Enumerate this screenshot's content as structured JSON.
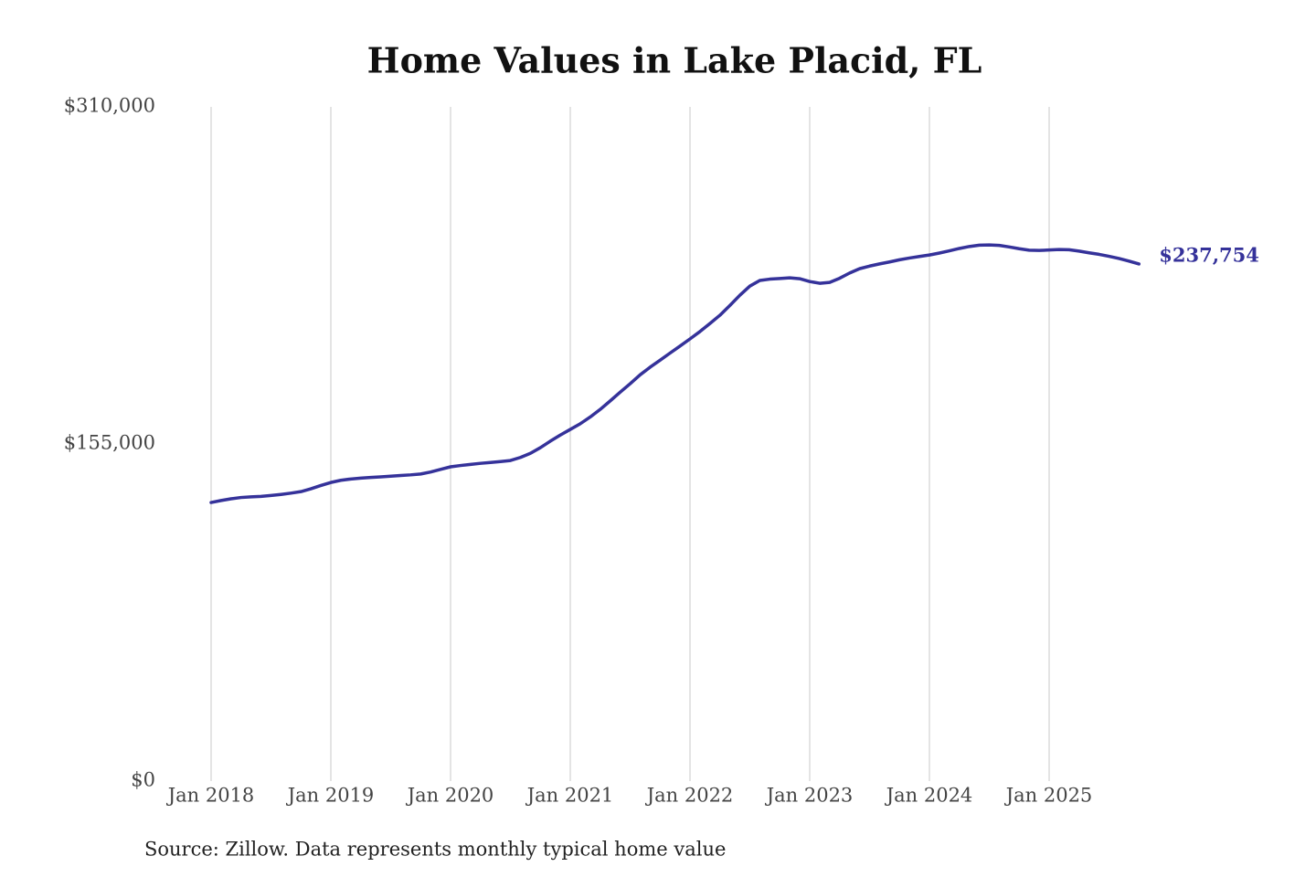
{
  "chart_data": {
    "type": "line",
    "title": "Home Values in Lake Placid, FL",
    "source": "Source: Zillow. Data represents monthly typical home value",
    "categories": [
      "Jan 2018",
      null,
      null,
      null,
      null,
      null,
      null,
      null,
      null,
      null,
      null,
      null,
      "Jan 2019",
      null,
      null,
      null,
      null,
      null,
      null,
      null,
      null,
      null,
      null,
      null,
      "Jan 2020",
      null,
      null,
      null,
      null,
      null,
      null,
      null,
      null,
      null,
      null,
      null,
      "Jan 2021",
      null,
      null,
      null,
      null,
      null,
      null,
      null,
      null,
      null,
      null,
      null,
      "Jan 2022",
      null,
      null,
      null,
      null,
      null,
      null,
      null,
      null,
      null,
      null,
      null,
      "Jan 2023",
      null,
      null,
      null,
      null,
      null,
      null,
      null,
      null,
      null,
      null,
      null,
      "Jan 2024",
      null,
      null,
      null,
      null,
      null,
      null,
      null,
      null,
      null,
      null,
      null,
      "Jan 2025",
      null,
      null,
      null,
      null,
      null,
      null,
      null,
      null,
      null
    ],
    "series": [
      {
        "color": "#35329a",
        "values": [
          128100,
          129000,
          129800,
          130400,
          130700,
          130900,
          131300,
          131800,
          132400,
          133100,
          134400,
          135900,
          137300,
          138300,
          138900,
          139300,
          139600,
          139900,
          140200,
          140500,
          140800,
          141200,
          142100,
          143300,
          144500,
          145100,
          145600,
          146100,
          146500,
          146900,
          147400,
          148800,
          150700,
          153300,
          156300,
          159100,
          161700,
          164300,
          167400,
          170900,
          174800,
          178800,
          182700,
          186800,
          190300,
          193500,
          196800,
          200000,
          203300,
          206700,
          210400,
          214200,
          218700,
          223400,
          227600,
          230200,
          230800,
          231100,
          231400,
          231000,
          229700,
          228900,
          229300,
          231200,
          233600,
          235600,
          236800,
          237800,
          238700,
          239700,
          240500,
          241200,
          241900,
          242800,
          243800,
          244900,
          245800,
          246400,
          246500,
          246300,
          245600,
          244800,
          244100,
          244000,
          244200,
          244400,
          244300,
          243700,
          242900,
          242200,
          241300,
          240300,
          239100,
          237754
        ],
        "value_labels": [
          null,
          null,
          null,
          null,
          null,
          null,
          null,
          null,
          null,
          null,
          null,
          null,
          null,
          null,
          null,
          null,
          null,
          null,
          null,
          null,
          null,
          null,
          null,
          null,
          null,
          null,
          null,
          null,
          null,
          null,
          null,
          null,
          null,
          null,
          null,
          null,
          null,
          null,
          null,
          null,
          null,
          null,
          null,
          null,
          null,
          null,
          null,
          null,
          null,
          null,
          null,
          null,
          null,
          null,
          null,
          null,
          null,
          null,
          null,
          null,
          null,
          null,
          null,
          null,
          null,
          null,
          null,
          null,
          null,
          null,
          null,
          null,
          null,
          null,
          null,
          null,
          null,
          null,
          null,
          null,
          null,
          null,
          null,
          null,
          null,
          null,
          null,
          null,
          null,
          null,
          null,
          null,
          null,
          "$237,754"
        ]
      }
    ],
    "ylim": [
      0,
      310000
    ],
    "yticks": [
      {
        "value": 0,
        "label": "$0"
      },
      {
        "value": 155000,
        "label": "$155,000"
      },
      {
        "value": 310000,
        "label": "$310,000"
      }
    ],
    "grid": "x"
  }
}
